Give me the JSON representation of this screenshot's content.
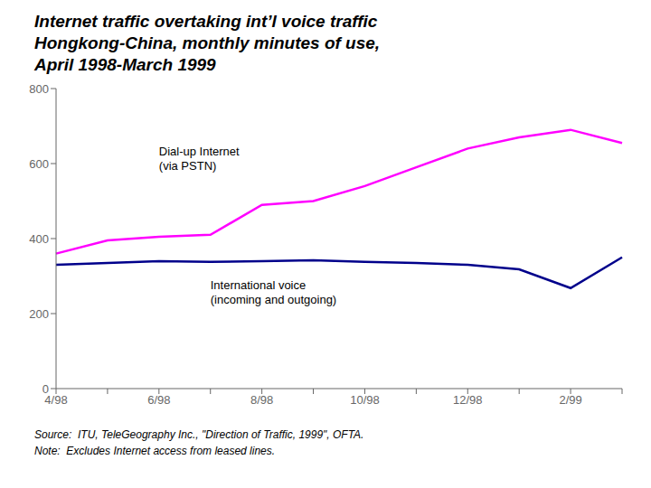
{
  "chart_data": {
    "type": "line",
    "title": "Internet traffic overtaking int’l voice traffic",
    "subtitle": "Hongkong-China, monthly minutes of use,\nApril 1998-March 1999",
    "categories": [
      "4/98",
      null,
      "6/98",
      null,
      "8/98",
      null,
      "10/98",
      null,
      "12/98",
      null,
      "2/99",
      null
    ],
    "series": [
      {
        "name": "Dial-up Internet\n(via PSTN)",
        "color": "#FF00FF",
        "values": [
          360,
          395,
          405,
          410,
          490,
          500,
          540,
          590,
          640,
          670,
          690,
          655
        ]
      },
      {
        "name": "International voice\n(incoming and outgoing)",
        "color": "#00008B",
        "values": [
          330,
          335,
          340,
          338,
          340,
          342,
          338,
          335,
          330,
          318,
          268,
          350
        ]
      }
    ],
    "ylim": [
      0,
      800
    ],
    "yticks": [
      0,
      200,
      400,
      600,
      800
    ],
    "grid": false,
    "annotations": [
      "Source:  ITU, TeleGeography Inc., \"Direction of Traffic, 1999\", OFTA.",
      "Note:  Excludes Internet access from leased lines."
    ]
  }
}
